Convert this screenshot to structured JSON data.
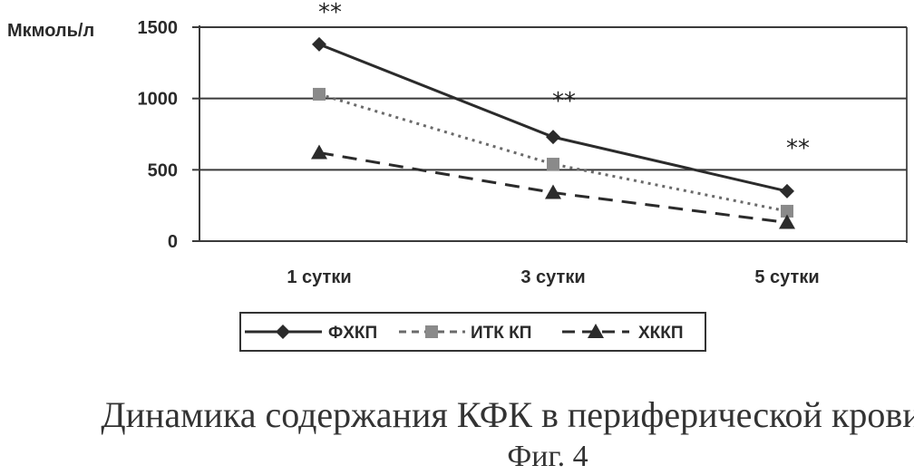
{
  "chart_data": {
    "type": "line",
    "ylabel": "Мкмоль/л",
    "categories": [
      "1 сутки",
      "3 сутки",
      "5 сутки"
    ],
    "ylim": [
      0,
      1500
    ],
    "yticks": [
      0,
      500,
      1000,
      1500
    ],
    "grid": true,
    "series": [
      {
        "name": "ФХКП",
        "values": [
          1380,
          730,
          350
        ],
        "marker": "diamond",
        "dash": "solid",
        "color": "#2b2b2b"
      },
      {
        "name": "ИТК КП",
        "values": [
          1030,
          540,
          210
        ],
        "marker": "square",
        "dash": "dotted",
        "color": "#6a6a6a"
      },
      {
        "name": "ХККП",
        "values": [
          620,
          340,
          130
        ],
        "marker": "triangle",
        "dash": "dashed",
        "color": "#2b2b2b"
      }
    ],
    "annotations": [
      "**",
      "**",
      "**"
    ],
    "legend_position": "bottom"
  },
  "caption": {
    "title": "Динамика содержания КФК в периферической крови",
    "figure": "Фиг. 4"
  }
}
